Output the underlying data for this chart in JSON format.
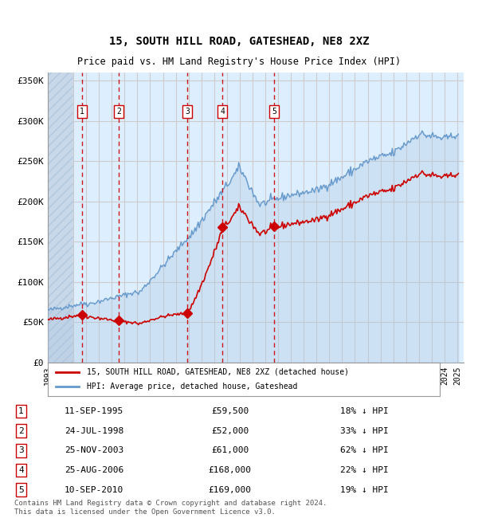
{
  "title1": "15, SOUTH HILL ROAD, GATESHEAD, NE8 2XZ",
  "title2": "Price paid vs. HM Land Registry's House Price Index (HPI)",
  "ylabel": "",
  "xlabel": "",
  "ylim": [
    0,
    360000
  ],
  "yticks": [
    0,
    50000,
    100000,
    150000,
    200000,
    250000,
    300000,
    350000
  ],
  "ytick_labels": [
    "£0",
    "£50K",
    "£100K",
    "£150K",
    "£200K",
    "£250K",
    "£300K",
    "£350K"
  ],
  "hpi_color": "#aac4e0",
  "hpi_line_color": "#6699cc",
  "price_color": "#cc0000",
  "sale_marker_color": "#cc0000",
  "vline_color": "#cc0000",
  "grid_color": "#cccccc",
  "bg_color": "#ddeeff",
  "hatch_color": "#c8d8e8",
  "legend_box_color": "#ffffff",
  "legend_border_color": "#999999",
  "sale_dates_x": [
    1995.69,
    1998.56,
    2003.9,
    2006.65,
    2010.69
  ],
  "sale_prices": [
    59500,
    52000,
    61000,
    168000,
    169000
  ],
  "sale_labels": [
    "1",
    "2",
    "3",
    "4",
    "5"
  ],
  "footer_text": "Contains HM Land Registry data © Crown copyright and database right 2024.\nThis data is licensed under the Open Government Licence v3.0.",
  "legend_line1": "15, SOUTH HILL ROAD, GATESHEAD, NE8 2XZ (detached house)",
  "legend_line2": "HPI: Average price, detached house, Gateshead",
  "table_data": [
    [
      "1",
      "11-SEP-1995",
      "£59,500",
      "18% ↓ HPI"
    ],
    [
      "2",
      "24-JUL-1998",
      "£52,000",
      "33% ↓ HPI"
    ],
    [
      "3",
      "25-NOV-2003",
      "£61,000",
      "62% ↓ HPI"
    ],
    [
      "4",
      "25-AUG-2006",
      "£168,000",
      "22% ↓ HPI"
    ],
    [
      "5",
      "10-SEP-2010",
      "£169,000",
      "19% ↓ HPI"
    ]
  ]
}
